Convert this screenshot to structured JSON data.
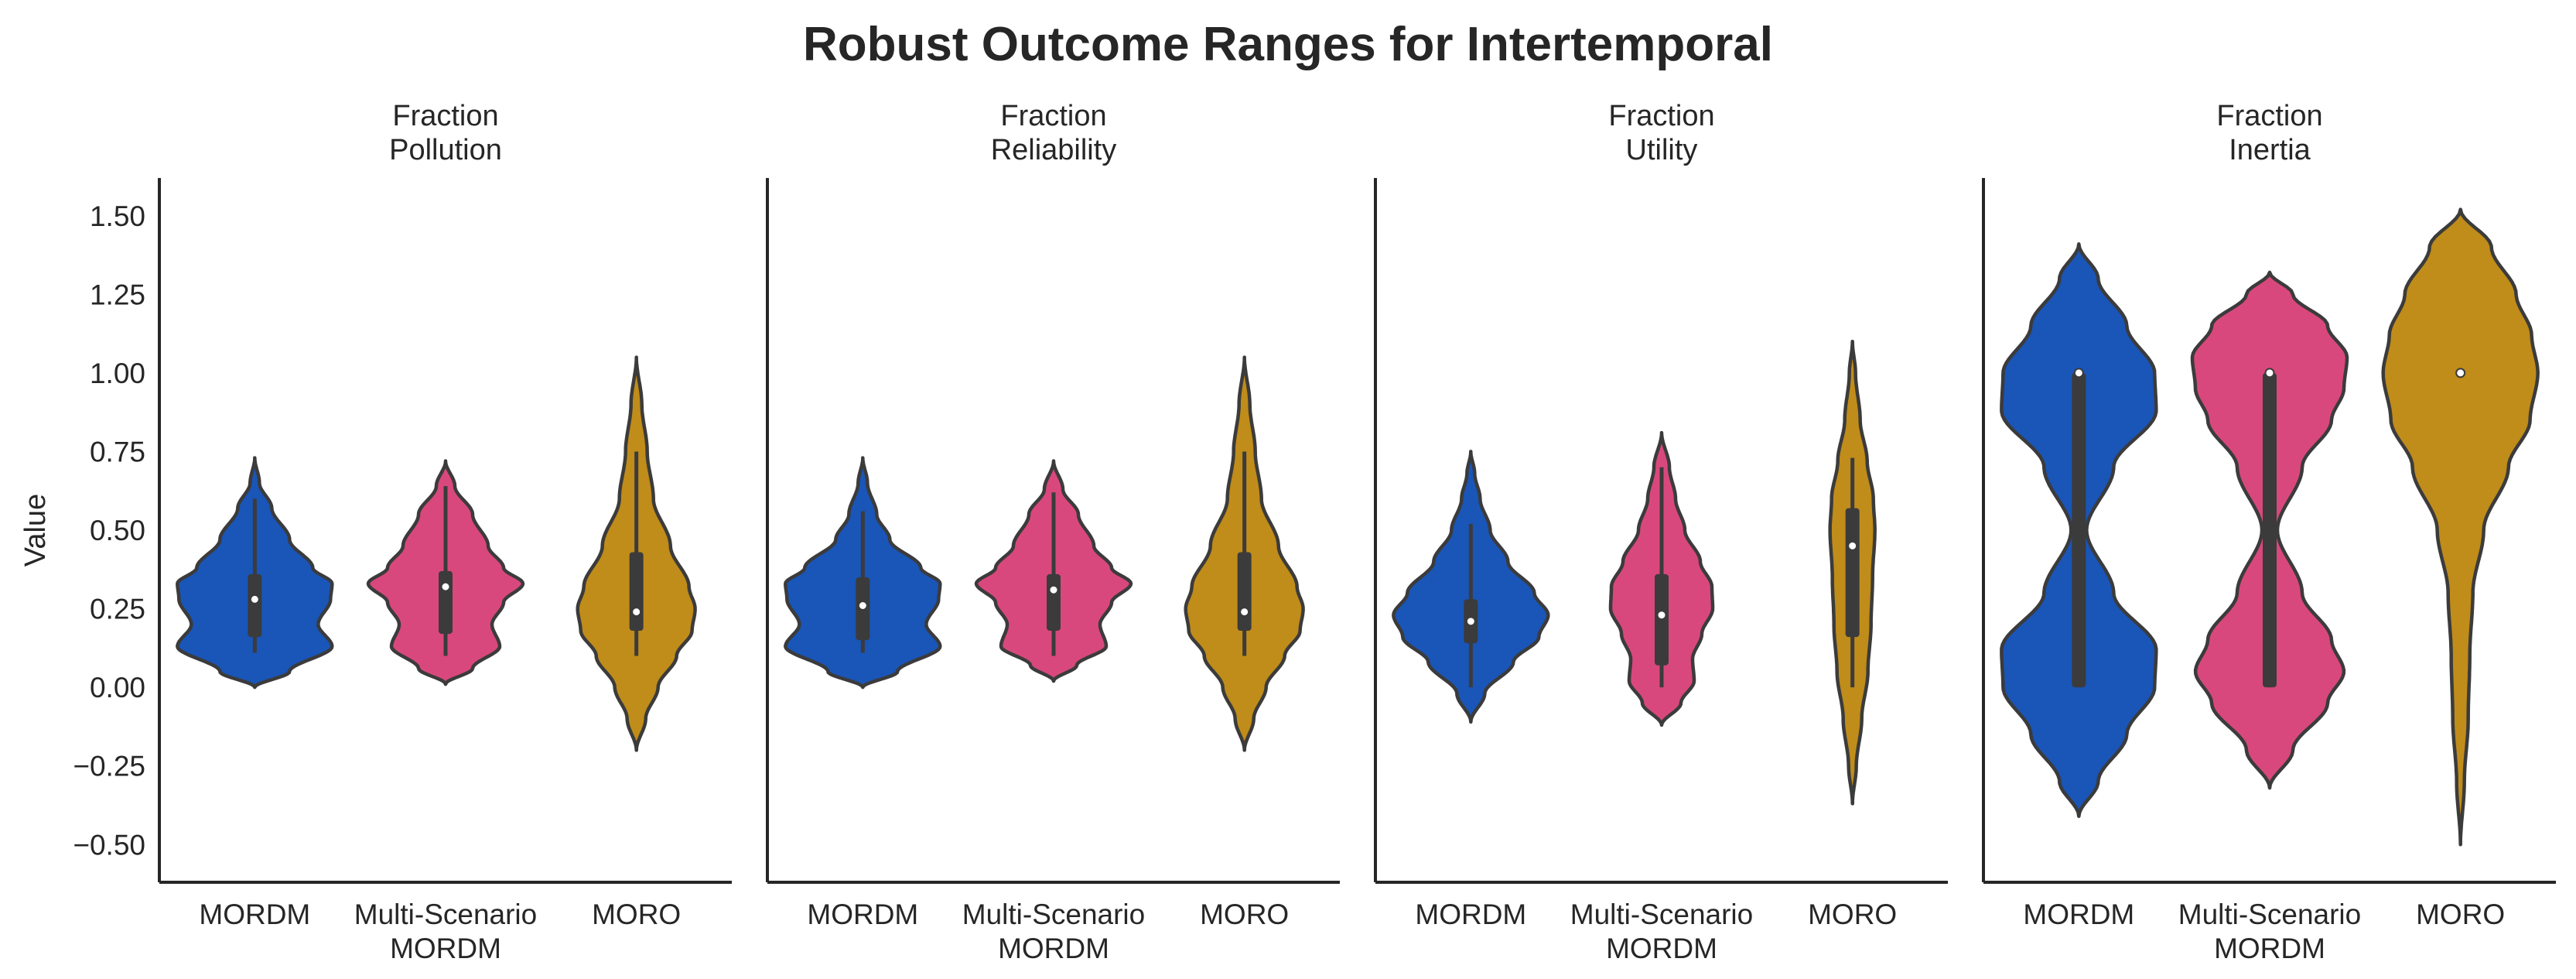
{
  "chart_data": {
    "type": "violin",
    "title": "Robust Outcome Ranges for Intertemporal",
    "ylabel": "Value",
    "ylim": [
      -0.62,
      1.62
    ],
    "yticks": [
      "1.50",
      "1.25",
      "1.00",
      "0.75",
      "0.50",
      "0.25",
      "0.00",
      "−0.25",
      "−0.50"
    ],
    "categories": [
      {
        "line1": "MORDM",
        "line2": ""
      },
      {
        "line1": "Multi-Scenario",
        "line2": "MORDM"
      },
      {
        "line1": "MORO",
        "line2": ""
      }
    ],
    "colors": [
      "#1a55b8",
      "#d9487d",
      "#c08c1a"
    ],
    "outline_color": "#3b3b3b",
    "panels": [
      {
        "title_line1": "Fraction",
        "title_line2": "Pollution",
        "violins": [
          {
            "min": 0.0,
            "max": 0.73,
            "q1": 0.16,
            "median": 0.28,
            "q3": 0.36,
            "wlow": 0.11,
            "whigh": 0.6,
            "profile": [
              [
                0.0,
                0.0
              ],
              [
                0.05,
                0.45
              ],
              [
                0.13,
                1.0
              ],
              [
                0.2,
                0.82
              ],
              [
                0.28,
                0.98
              ],
              [
                0.33,
                1.0
              ],
              [
                0.38,
                0.75
              ],
              [
                0.47,
                0.45
              ],
              [
                0.57,
                0.22
              ],
              [
                0.65,
                0.06
              ],
              [
                0.73,
                0.0
              ]
            ]
          },
          {
            "min": 0.01,
            "max": 0.72,
            "q1": 0.17,
            "median": 0.32,
            "q3": 0.37,
            "wlow": 0.1,
            "whigh": 0.64,
            "profile": [
              [
                0.01,
                0.0
              ],
              [
                0.06,
                0.35
              ],
              [
                0.13,
                0.7
              ],
              [
                0.2,
                0.6
              ],
              [
                0.27,
                0.75
              ],
              [
                0.33,
                1.0
              ],
              [
                0.38,
                0.75
              ],
              [
                0.45,
                0.55
              ],
              [
                0.55,
                0.35
              ],
              [
                0.64,
                0.12
              ],
              [
                0.72,
                0.0
              ]
            ]
          },
          {
            "min": -0.2,
            "max": 1.05,
            "q1": 0.18,
            "median": 0.24,
            "q3": 0.43,
            "wlow": 0.1,
            "whigh": 0.75,
            "profile": [
              [
                -0.2,
                0.0
              ],
              [
                -0.1,
                0.12
              ],
              [
                0.0,
                0.28
              ],
              [
                0.1,
                0.52
              ],
              [
                0.18,
                0.72
              ],
              [
                0.25,
                0.76
              ],
              [
                0.32,
                0.68
              ],
              [
                0.45,
                0.44
              ],
              [
                0.6,
                0.22
              ],
              [
                0.75,
                0.14
              ],
              [
                0.9,
                0.07
              ],
              [
                1.05,
                0.0
              ]
            ]
          }
        ]
      },
      {
        "title_line1": "Fraction",
        "title_line2": "Reliability",
        "violins": [
          {
            "min": 0.0,
            "max": 0.73,
            "q1": 0.15,
            "median": 0.26,
            "q3": 0.35,
            "wlow": 0.11,
            "whigh": 0.56,
            "profile": [
              [
                0.0,
                0.0
              ],
              [
                0.05,
                0.45
              ],
              [
                0.13,
                1.0
              ],
              [
                0.2,
                0.82
              ],
              [
                0.28,
                0.98
              ],
              [
                0.33,
                1.0
              ],
              [
                0.38,
                0.75
              ],
              [
                0.47,
                0.35
              ],
              [
                0.55,
                0.18
              ],
              [
                0.65,
                0.06
              ],
              [
                0.73,
                0.0
              ]
            ]
          },
          {
            "min": 0.02,
            "max": 0.72,
            "q1": 0.18,
            "median": 0.31,
            "q3": 0.36,
            "wlow": 0.1,
            "whigh": 0.62,
            "profile": [
              [
                0.02,
                0.0
              ],
              [
                0.07,
                0.3
              ],
              [
                0.13,
                0.68
              ],
              [
                0.2,
                0.6
              ],
              [
                0.27,
                0.75
              ],
              [
                0.33,
                1.0
              ],
              [
                0.38,
                0.75
              ],
              [
                0.45,
                0.52
              ],
              [
                0.55,
                0.32
              ],
              [
                0.63,
                0.12
              ],
              [
                0.72,
                0.0
              ]
            ]
          },
          {
            "min": -0.2,
            "max": 1.05,
            "q1": 0.18,
            "median": 0.24,
            "q3": 0.43,
            "wlow": 0.1,
            "whigh": 0.75,
            "profile": [
              [
                -0.2,
                0.0
              ],
              [
                -0.1,
                0.12
              ],
              [
                0.0,
                0.28
              ],
              [
                0.1,
                0.52
              ],
              [
                0.18,
                0.72
              ],
              [
                0.25,
                0.76
              ],
              [
                0.32,
                0.68
              ],
              [
                0.45,
                0.44
              ],
              [
                0.6,
                0.22
              ],
              [
                0.75,
                0.14
              ],
              [
                0.9,
                0.07
              ],
              [
                1.05,
                0.0
              ]
            ]
          }
        ]
      },
      {
        "title_line1": "Fraction",
        "title_line2": "Utility",
        "violins": [
          {
            "min": -0.11,
            "max": 0.75,
            "q1": 0.14,
            "median": 0.21,
            "q3": 0.28,
            "wlow": 0.0,
            "whigh": 0.52,
            "profile": [
              [
                -0.11,
                0.0
              ],
              [
                -0.02,
                0.18
              ],
              [
                0.08,
                0.55
              ],
              [
                0.16,
                0.88
              ],
              [
                0.23,
                1.0
              ],
              [
                0.3,
                0.82
              ],
              [
                0.4,
                0.48
              ],
              [
                0.5,
                0.25
              ],
              [
                0.6,
                0.12
              ],
              [
                0.68,
                0.05
              ],
              [
                0.75,
                0.0
              ]
            ]
          },
          {
            "min": -0.12,
            "max": 0.81,
            "q1": 0.07,
            "median": 0.23,
            "q3": 0.36,
            "wlow": 0.0,
            "whigh": 0.7,
            "profile": [
              [
                -0.12,
                0.0
              ],
              [
                -0.05,
                0.25
              ],
              [
                0.02,
                0.42
              ],
              [
                0.09,
                0.4
              ],
              [
                0.17,
                0.52
              ],
              [
                0.25,
                0.66
              ],
              [
                0.32,
                0.65
              ],
              [
                0.4,
                0.5
              ],
              [
                0.5,
                0.3
              ],
              [
                0.6,
                0.18
              ],
              [
                0.7,
                0.1
              ],
              [
                0.81,
                0.0
              ]
            ]
          },
          {
            "min": -0.37,
            "max": 1.1,
            "q1": 0.16,
            "median": 0.45,
            "q3": 0.57,
            "wlow": 0.0,
            "whigh": 0.73,
            "profile": [
              [
                -0.37,
                0.0
              ],
              [
                -0.25,
                0.05
              ],
              [
                -0.1,
                0.12
              ],
              [
                0.05,
                0.2
              ],
              [
                0.2,
                0.24
              ],
              [
                0.35,
                0.26
              ],
              [
                0.5,
                0.29
              ],
              [
                0.6,
                0.27
              ],
              [
                0.72,
                0.19
              ],
              [
                0.85,
                0.1
              ],
              [
                1.0,
                0.04
              ],
              [
                1.1,
                0.0
              ]
            ]
          }
        ]
      },
      {
        "title_line1": "Fraction",
        "title_line2": "Inertia",
        "violins": [
          {
            "min": -0.41,
            "max": 1.41,
            "q1": 0.0,
            "median": 1.0,
            "q3": 1.0,
            "wlow": 0.0,
            "whigh": 1.0,
            "profile": [
              [
                -0.41,
                0.0
              ],
              [
                -0.3,
                0.25
              ],
              [
                -0.15,
                0.62
              ],
              [
                0.0,
                0.98
              ],
              [
                0.12,
                1.0
              ],
              [
                0.3,
                0.45
              ],
              [
                0.5,
                0.1
              ],
              [
                0.7,
                0.45
              ],
              [
                0.88,
                1.0
              ],
              [
                1.0,
                0.98
              ],
              [
                1.15,
                0.62
              ],
              [
                1.3,
                0.25
              ],
              [
                1.41,
                0.0
              ]
            ]
          },
          {
            "min": -0.32,
            "max": 1.32,
            "q1": 0.0,
            "median": 1.0,
            "q3": 1.0,
            "wlow": 0.0,
            "whigh": 1.0,
            "profile": [
              [
                -0.32,
                0.0
              ],
              [
                -0.2,
                0.3
              ],
              [
                -0.05,
                0.75
              ],
              [
                0.05,
                0.96
              ],
              [
                0.15,
                0.8
              ],
              [
                0.3,
                0.42
              ],
              [
                0.5,
                0.1
              ],
              [
                0.7,
                0.42
              ],
              [
                0.85,
                0.8
              ],
              [
                0.95,
                0.96
              ],
              [
                1.05,
                1.0
              ],
              [
                1.15,
                0.75
              ],
              [
                1.25,
                0.3
              ],
              [
                1.32,
                0.0
              ]
            ]
          },
          {
            "min": -0.5,
            "max": 1.52,
            "q1": 1.0,
            "median": 1.0,
            "q3": 1.0,
            "wlow": 1.0,
            "whigh": 1.0,
            "profile": [
              [
                -0.5,
                0.0
              ],
              [
                -0.3,
                0.05
              ],
              [
                -0.1,
                0.1
              ],
              [
                0.1,
                0.12
              ],
              [
                0.3,
                0.16
              ],
              [
                0.5,
                0.3
              ],
              [
                0.7,
                0.62
              ],
              [
                0.85,
                0.9
              ],
              [
                1.0,
                1.0
              ],
              [
                1.12,
                0.92
              ],
              [
                1.25,
                0.72
              ],
              [
                1.4,
                0.4
              ],
              [
                1.52,
                0.0
              ]
            ]
          }
        ]
      }
    ]
  }
}
